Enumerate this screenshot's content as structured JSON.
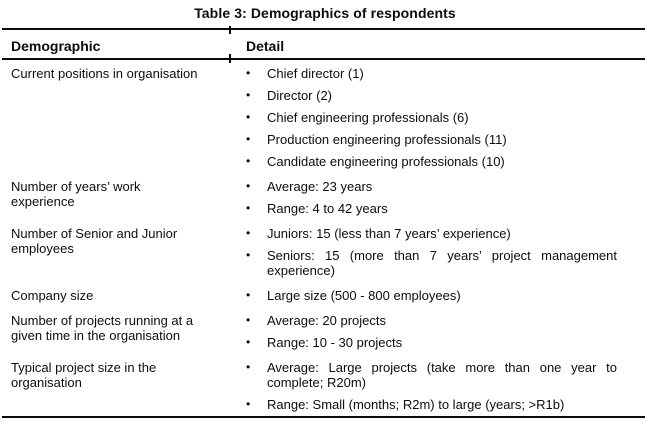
{
  "title": "Table 3: Demographics of respondents",
  "bullet_glyph": "•",
  "colors": {
    "text": "#0d0d0d",
    "rule": "#0a0a0a",
    "background": "#ffffff"
  },
  "table": {
    "headers": [
      "Demographic",
      "Detail"
    ],
    "rows": [
      {
        "demographic": "Current positions in organisation",
        "details": [
          "Chief director (1)",
          "Director (2)",
          "Chief engineering professionals (6)",
          "Production engineering professionals (11)",
          "Candidate engineering professionals (10)"
        ]
      },
      {
        "demographic": "Number of years’ work experience",
        "details": [
          "Average: 23 years",
          "Range: 4 to 42 years"
        ]
      },
      {
        "demographic": "Number of Senior and Junior employees",
        "details": [
          "Juniors: 15 (less than 7 years’ experience)",
          "Seniors: 15 (more than 7 years’ project management experience)"
        ]
      },
      {
        "demographic": "Company size",
        "details": [
          "Large size (500 - 800 employees)"
        ]
      },
      {
        "demographic": "Number of projects running at a given time in the organisation",
        "details": [
          "Average: 20 projects",
          "Range: 10 - 30 projects"
        ]
      },
      {
        "demographic": "Typical project size in the organisation",
        "details": [
          "Average: Large projects (take more than one year to complete; R20m)",
          "Range: Small (months; R2m) to large (years; >R1b)"
        ]
      }
    ]
  }
}
